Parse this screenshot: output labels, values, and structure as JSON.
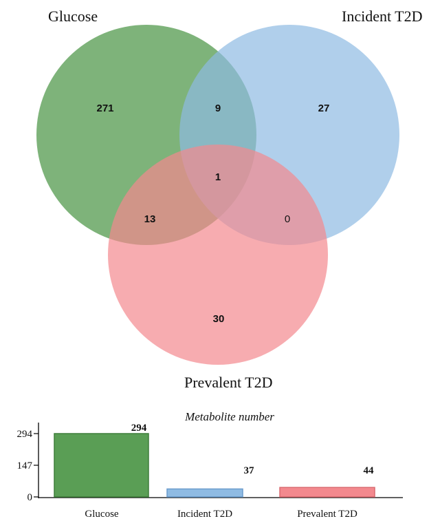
{
  "venn": {
    "sets": [
      {
        "label": "Glucose",
        "color": "#5a9e55"
      },
      {
        "label": "Incident T2D",
        "color": "#8fbbe3"
      },
      {
        "label": "Prevalent T2D",
        "color": "#f3898e"
      }
    ],
    "regions": {
      "glucose_only": "271",
      "glucose_incident": "9",
      "incident_only": "27",
      "all_three": "1",
      "glucose_prevalent": "13",
      "incident_prevalent": "0",
      "prevalent_only": "30"
    }
  },
  "chart_data": {
    "type": "bar",
    "title": "Metabolite number",
    "categories": [
      "Glucose",
      "Incident T2D",
      "Prevalent T2D"
    ],
    "values": [
      294,
      37,
      44
    ],
    "value_labels": [
      "294",
      "37",
      "44"
    ],
    "yticks": [
      "0",
      "147",
      "294"
    ],
    "ylim": [
      0,
      294
    ],
    "colors": [
      "#5a9e55",
      "#8fbbe3",
      "#f3898e"
    ],
    "edge_colors": [
      "#3f7f3b",
      "#6b9ccd",
      "#d96a70"
    ]
  }
}
